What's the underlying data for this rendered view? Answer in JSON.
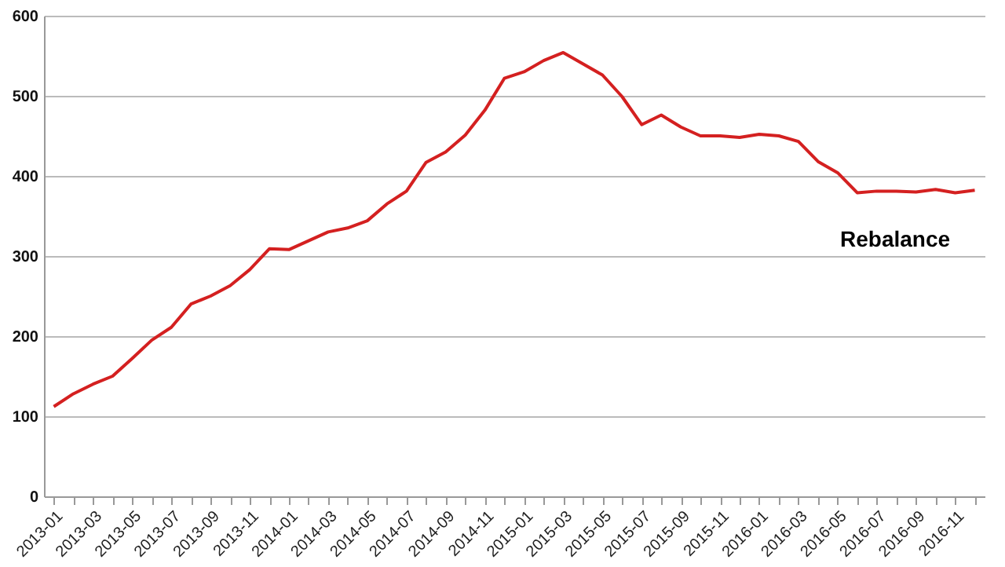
{
  "chart_data": {
    "type": "line",
    "categories": [
      "2013-01",
      null,
      "2013-03",
      null,
      "2013-05",
      null,
      "2013-07",
      null,
      "2013-09",
      null,
      "2013-11",
      null,
      "2014-01",
      null,
      "2014-03",
      null,
      "2014-05",
      null,
      "2014-07",
      null,
      "2014-09",
      null,
      "2014-11",
      null,
      "2015-01",
      null,
      "2015-03",
      null,
      "2015-05",
      null,
      "2015-07",
      null,
      "2015-09",
      null,
      "2015-11",
      null,
      "2016-01",
      null,
      "2016-03",
      null,
      "2016-05",
      null,
      "2016-07",
      null,
      "2016-09",
      null,
      "2016-11",
      null
    ],
    "series": [
      {
        "color": "#d42020",
        "values": [
          112,
          128,
          140,
          150,
          172,
          195,
          211,
          240,
          250,
          263,
          283,
          309,
          308,
          319,
          330,
          335,
          344,
          365,
          381,
          417,
          430,
          451,
          482,
          522,
          530,
          544,
          554,
          540,
          526,
          499,
          464,
          476,
          461,
          450,
          450,
          448,
          452,
          450,
          443,
          418,
          404,
          379,
          381,
          381,
          380,
          383,
          379,
          382
        ]
      }
    ],
    "ylim": [
      0,
      600
    ],
    "yticks": [
      0,
      100,
      200,
      300,
      400,
      500,
      600
    ],
    "grid": "y",
    "annotations": [
      "Rebalance"
    ]
  }
}
